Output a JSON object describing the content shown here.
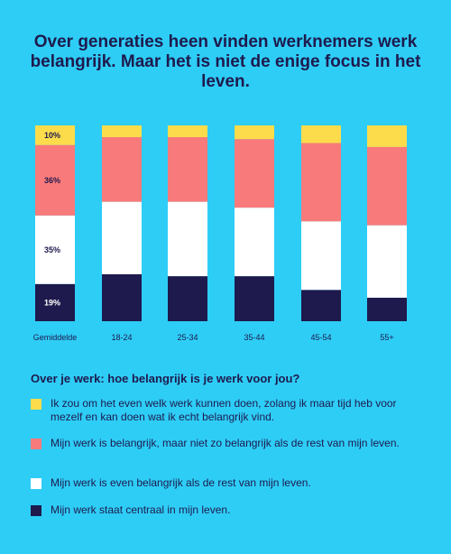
{
  "title": "Over generaties heen vinden werknemers werk belangrijk. Maar het is niet de enige focus in het leven.",
  "chart_data": {
    "type": "bar",
    "stacked": true,
    "categories": [
      "Gemiddelde",
      "18-24",
      "25-34",
      "35-44",
      "45-54",
      "55+"
    ],
    "ylim": [
      0,
      100
    ],
    "series": [
      {
        "name": "Mijn werk staat centraal in mijn leven.",
        "color": "#1E1A4D",
        "values": [
          19,
          24,
          23,
          23,
          16,
          12
        ]
      },
      {
        "name": "Mijn werk is even belangrijk als de rest van mijn leven.",
        "color": "#FFFFFF",
        "values": [
          35,
          37,
          38,
          35,
          35,
          37
        ]
      },
      {
        "name": "Mijn werk is belangrijk, maar niet zo belangrijk als de rest van mijn leven.",
        "color": "#F97A7A",
        "values": [
          36,
          33,
          33,
          35,
          40,
          40
        ]
      },
      {
        "name": "Ik zou om het even welk werk kunnen doen, zolang ik maar tijd heb voor mezelf en kan doen wat ik echt belangrijk vind.",
        "color": "#FDDC4C",
        "values": [
          10,
          6,
          6,
          7,
          9,
          11
        ]
      }
    ],
    "data_labels": {
      "category": "Gemiddelde",
      "labels": [
        "19%",
        "35%",
        "36%",
        "10%"
      ],
      "colors": [
        "#FFFFFF",
        "#1E1A4D",
        "#1E1A4D",
        "#1E1A4D"
      ]
    }
  },
  "legend": {
    "title": "Over je werk: hoe belangrijk is je werk voor jou?"
  }
}
